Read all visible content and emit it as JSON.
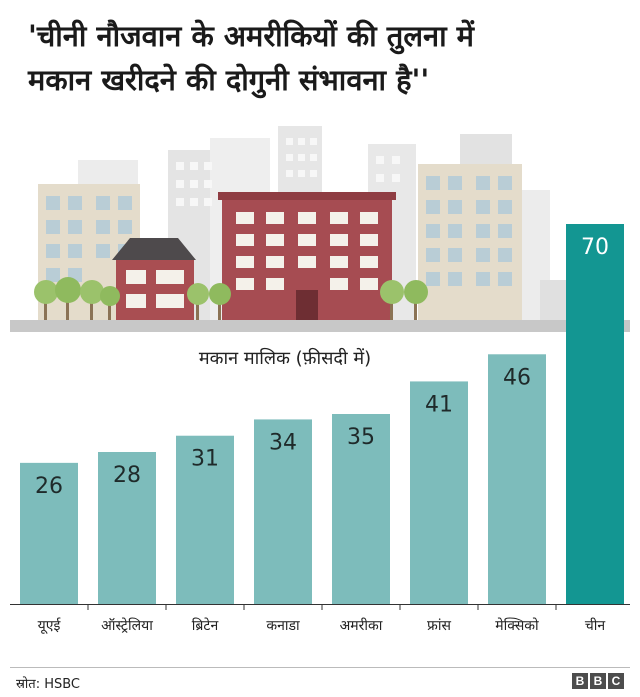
{
  "title_line1": "'चीनी नौजवान के अमरीकियों की तुलना में",
  "title_line2": "मकान खरीदने की दोगुनी संभावना है''",
  "source": "स्रोत: HSBC",
  "logo": [
    "B",
    "B",
    "C"
  ],
  "colors": {
    "bar": "#7dbcbb",
    "highlight": "#139692",
    "value_dark": "#1f2a2a",
    "value_light": "#ffffff"
  },
  "chart_data": {
    "type": "bar",
    "title": "मकान मालिक (फ़ीसदी में)",
    "categories": [
      "यूएई",
      "ऑस्ट्रेलिया",
      "ब्रिटेन",
      "कनाडा",
      "अमरीका",
      "फ्रांस",
      "मेक्सिको",
      "चीन"
    ],
    "values": [
      26,
      28,
      31,
      34,
      35,
      41,
      46,
      70
    ],
    "highlight": "चीन",
    "ylim": [
      0,
      70
    ],
    "grid": false
  }
}
